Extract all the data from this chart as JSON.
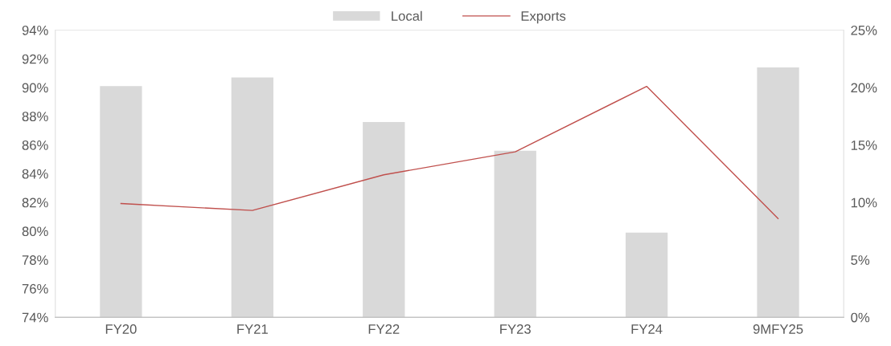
{
  "chart_data": {
    "type": "bar",
    "categories": [
      "FY20",
      "FY21",
      "FY22",
      "FY23",
      "FY24",
      "9MFY25"
    ],
    "series": [
      {
        "name": "Local",
        "color": "#d9d9d9",
        "values": [
          90.1,
          90.7,
          87.6,
          85.6,
          79.9,
          91.4
        ]
      },
      {
        "name": "Exports",
        "type": "line",
        "axis": "y2",
        "color": "#c0504d",
        "values": [
          9.9,
          9.3,
          12.4,
          14.4,
          20.1,
          8.6
        ]
      }
    ],
    "ylim": [
      74,
      94
    ],
    "yticks": [
      {
        "value": 74,
        "label": "74%"
      },
      {
        "value": 76,
        "label": "76%"
      },
      {
        "value": 78,
        "label": "78%"
      },
      {
        "value": 80,
        "label": "80%"
      },
      {
        "value": 82,
        "label": "82%"
      },
      {
        "value": 84,
        "label": "84%"
      },
      {
        "value": 86,
        "label": "86%"
      },
      {
        "value": 88,
        "label": "88%"
      },
      {
        "value": 90,
        "label": "90%"
      },
      {
        "value": 92,
        "label": "92%"
      },
      {
        "value": 94,
        "label": "94%"
      }
    ],
    "y2lim": [
      0,
      25
    ],
    "y2ticks": [
      {
        "value": 0,
        "label": "0%"
      },
      {
        "value": 5,
        "label": "5%"
      },
      {
        "value": 10,
        "label": "10%"
      },
      {
        "value": 15,
        "label": "15%"
      },
      {
        "value": 20,
        "label": "20%"
      },
      {
        "value": 25,
        "label": "25%"
      }
    ],
    "legend": "top",
    "grid": false,
    "marker": "none",
    "line_style": "solid"
  }
}
